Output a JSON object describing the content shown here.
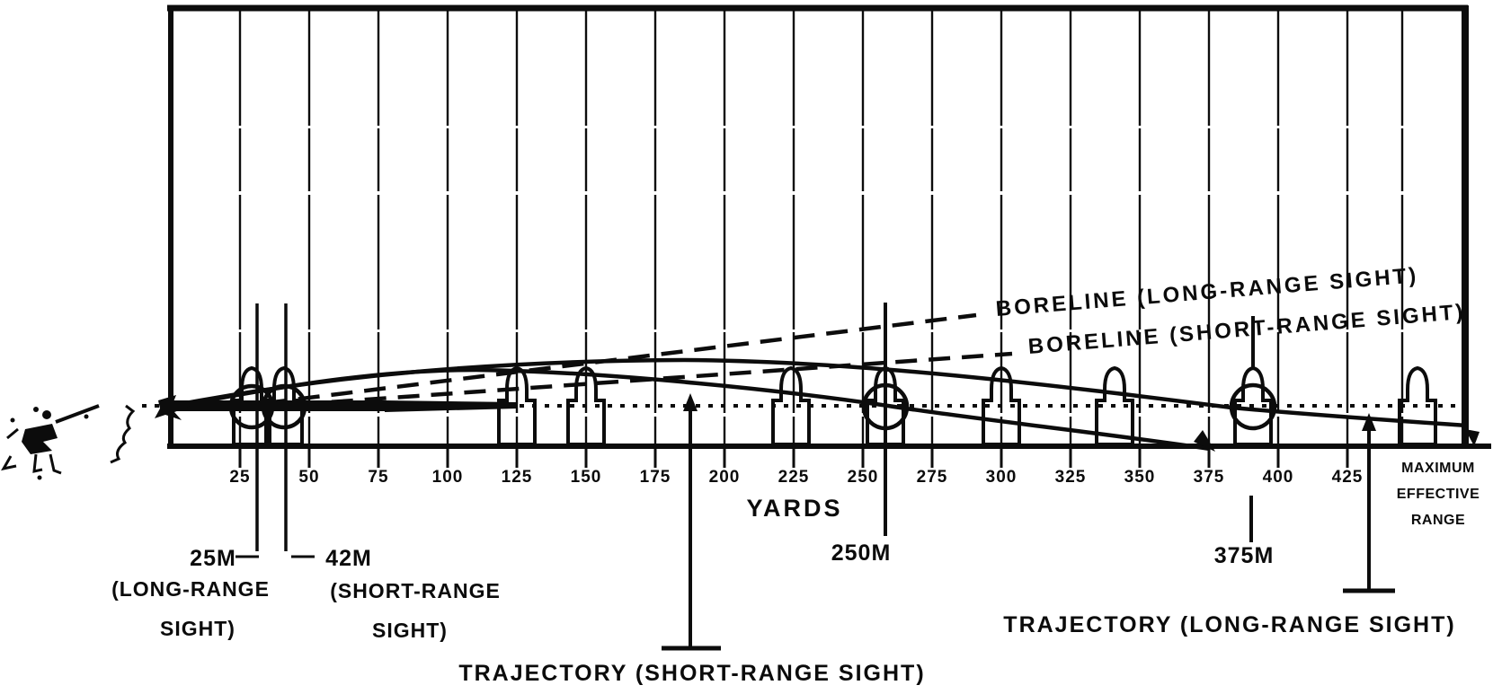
{
  "figure": {
    "axis": {
      "unit_label": "YARDS",
      "ticks": [
        "25",
        "50",
        "75",
        "100",
        "125",
        "150",
        "175",
        "200",
        "225",
        "250",
        "275",
        "300",
        "325",
        "350",
        "375",
        "400",
        "425"
      ],
      "max_range": {
        "line1": "MAXIMUM",
        "line2": "EFFECTIVE",
        "line3": "RANGE"
      }
    },
    "line_labels": {
      "boreline_long": "BORELINE (LONG-RANGE SIGHT)",
      "boreline_short": "BORELINE (SHORT-RANGE SIGHT)",
      "trajectory_short": "TRAJECTORY (SHORT-RANGE SIGHT)",
      "trajectory_long": "TRAJECTORY (LONG-RANGE SIGHT)"
    },
    "zero_markers": {
      "m25": {
        "label": "25M",
        "sub1": "(LONG-RANGE",
        "sub2": "SIGHT)"
      },
      "m42": {
        "label": "42M",
        "sub1": "(SHORT-RANGE",
        "sub2": "SIGHT)"
      },
      "m250": {
        "label": "250M"
      },
      "m375": {
        "label": "375M"
      }
    }
  },
  "colors": {
    "ink": "#0c0c0c",
    "paper": "#ffffff"
  },
  "chart_data": {
    "type": "line",
    "title": "Rifle sight boreline and bullet trajectory diagram",
    "xlabel": "YARDS",
    "x_ticks": [
      25,
      50,
      75,
      100,
      125,
      150,
      175,
      200,
      225,
      250,
      275,
      300,
      325,
      350,
      375,
      400,
      425
    ],
    "x_extra_tick": "MAXIMUM EFFECTIVE RANGE",
    "series": [
      {
        "name": "BORELINE (LONG-RANGE SIGHT)",
        "style": "dashed",
        "shape": "straight line rising from muzzle"
      },
      {
        "name": "BORELINE (SHORT-RANGE SIGHT)",
        "style": "dashed",
        "shape": "straight line rising from muzzle, shallower"
      },
      {
        "name": "TRAJECTORY (SHORT-RANGE SIGHT)",
        "style": "solid",
        "zero_crossings_m": [
          42,
          250
        ],
        "ground_strike_yards": 375
      },
      {
        "name": "TRAJECTORY (LONG-RANGE SIGHT)",
        "style": "solid",
        "zero_crossings_m": [
          25,
          375
        ],
        "ends_at": "maximum effective range"
      },
      {
        "name": "line of sight",
        "style": "dotted",
        "shape": "horizontal"
      }
    ],
    "annotations_m": [
      25,
      42,
      250,
      375
    ],
    "legend_position": "inline labels",
    "grid": "vertical lines every 25 yards"
  }
}
